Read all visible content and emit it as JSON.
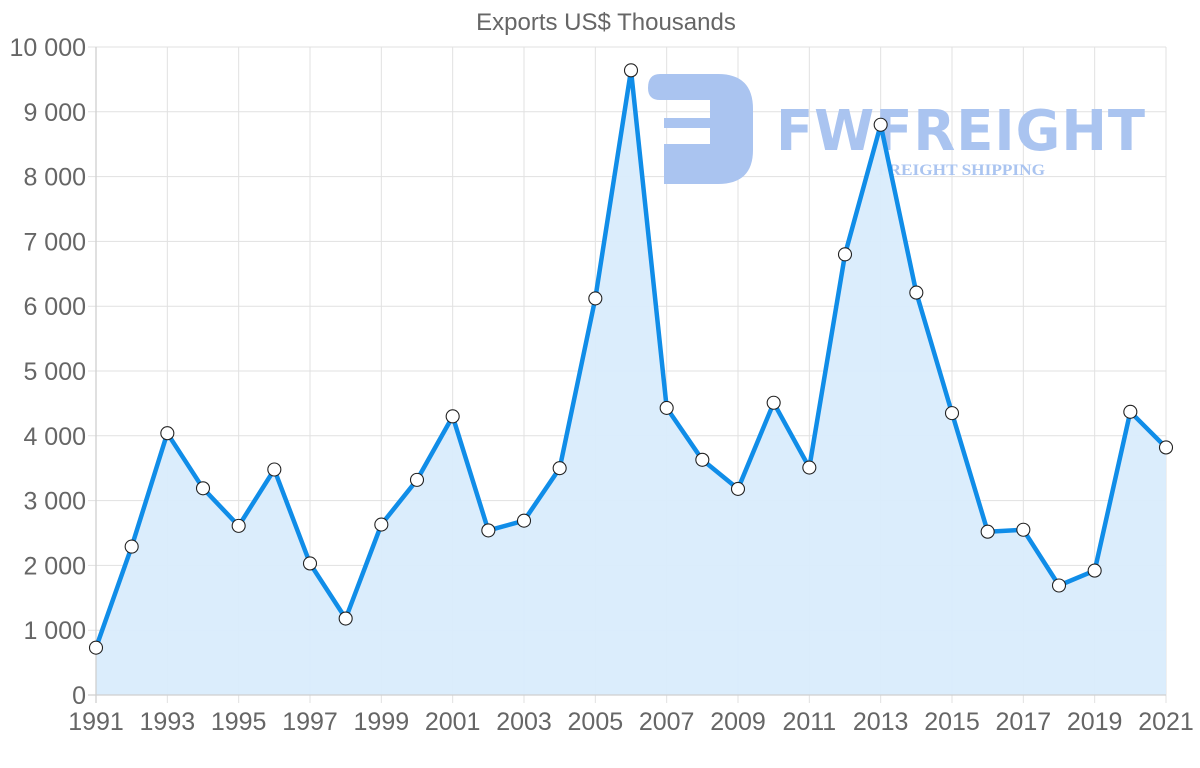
{
  "chart_data": {
    "type": "area",
    "title": "Exports US$ Thousands",
    "xlabel": "",
    "ylabel": "",
    "x": [
      1991,
      1992,
      1993,
      1994,
      1995,
      1996,
      1997,
      1998,
      1999,
      2000,
      2001,
      2002,
      2003,
      2004,
      2005,
      2006,
      2007,
      2008,
      2009,
      2010,
      2011,
      2012,
      2013,
      2014,
      2015,
      2016,
      2017,
      2018,
      2019,
      2020,
      2021
    ],
    "series": [
      {
        "name": "Exports US$ Thousands",
        "values": [
          730,
          2290,
          4040,
          3190,
          2610,
          3480,
          2030,
          1180,
          2630,
          3320,
          4300,
          2540,
          2690,
          3500,
          6120,
          9640,
          4430,
          3630,
          3180,
          4510,
          3510,
          6800,
          8800,
          6210,
          4350,
          2520,
          2550,
          1690,
          1920,
          4370,
          3820
        ],
        "line_color": "#108de8",
        "fill_color": "#d9ecfc",
        "point_fill": "#ffffff",
        "point_stroke": "#222222"
      }
    ],
    "xlim": [
      1991,
      2021
    ],
    "ylim": [
      0,
      10000
    ],
    "x_tick_labels": [
      "1991",
      "1993",
      "1995",
      "1997",
      "1999",
      "2001",
      "2003",
      "2005",
      "2007",
      "2009",
      "2011",
      "2013",
      "2015",
      "2017",
      "2019",
      "2021"
    ],
    "y_ticks": [
      0,
      1000,
      2000,
      3000,
      4000,
      5000,
      6000,
      7000,
      8000,
      9000,
      10000
    ],
    "y_tick_labels": [
      "0",
      "1 000",
      "2 000",
      "3 000",
      "4 000",
      "5 000",
      "6 000",
      "7 000",
      "8 000",
      "9 000",
      "10 000"
    ],
    "grid": true,
    "legend": "none"
  },
  "watermark": {
    "brand": "FWFREIGHT",
    "tagline": "FREIGHT SHIPPING",
    "color": "#aac4f0"
  }
}
